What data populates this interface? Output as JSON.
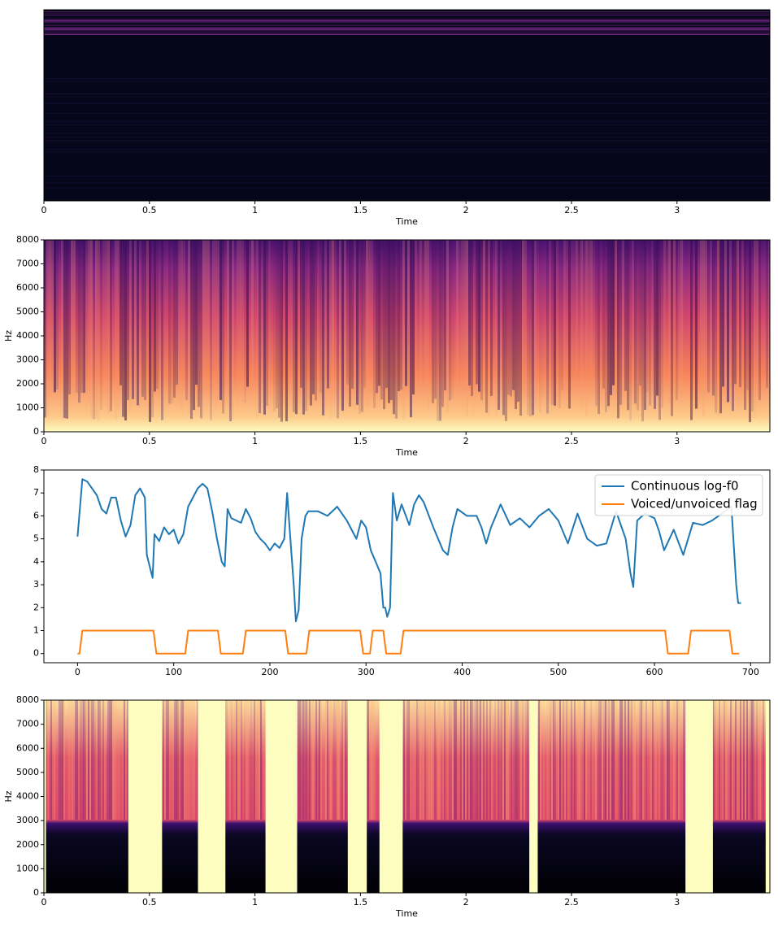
{
  "chart_data": [
    {
      "type": "heatmap",
      "xlabel": "Time",
      "xlim": [
        0,
        3.44
      ],
      "xticks": [
        0,
        0.5,
        1,
        1.5,
        2,
        2.5,
        3
      ]
    },
    {
      "type": "heatmap",
      "xlabel": "Time",
      "ylabel": "Hz",
      "xlim": [
        0,
        3.44
      ],
      "xticks": [
        0,
        0.5,
        1,
        1.5,
        2,
        2.5,
        3
      ],
      "ylim": [
        0,
        8000
      ],
      "yticks": [
        0,
        1000,
        2000,
        3000,
        4000,
        5000,
        6000,
        7000,
        8000
      ]
    },
    {
      "type": "line",
      "xlim": [
        -35,
        720
      ],
      "xticks": [
        0,
        100,
        200,
        300,
        400,
        500,
        600,
        700
      ],
      "ylim": [
        -0.4,
        8
      ],
      "yticks": [
        0,
        1,
        2,
        3,
        4,
        5,
        6,
        7,
        8
      ],
      "legend": "upper right",
      "series": [
        {
          "name": "Continuous log-f0",
          "color": "#1f77b4",
          "x": [
            0,
            5,
            10,
            20,
            25,
            30,
            35,
            40,
            45,
            50,
            55,
            60,
            65,
            70,
            72,
            78,
            80,
            85,
            90,
            95,
            100,
            105,
            110,
            115,
            120,
            125,
            130,
            135,
            140,
            145,
            150,
            153,
            156,
            160,
            170,
            175,
            180,
            185,
            190,
            195,
            200,
            205,
            210,
            215,
            218,
            222,
            225,
            227,
            230,
            233,
            237,
            240,
            250,
            260,
            270,
            280,
            290,
            295,
            300,
            305,
            310,
            315,
            318,
            320,
            322,
            325,
            328,
            332,
            337,
            345,
            350,
            355,
            360,
            370,
            380,
            385,
            390,
            395,
            405,
            415,
            420,
            425,
            430,
            440,
            450,
            460,
            470,
            480,
            490,
            500,
            510,
            520,
            530,
            540,
            550,
            560,
            570,
            575,
            578,
            582,
            590,
            600,
            605,
            610,
            620,
            630,
            640,
            650,
            660,
            670,
            680,
            682,
            685,
            687,
            690
          ],
          "values": [
            5.1,
            7.6,
            7.5,
            6.9,
            6.3,
            6.1,
            6.8,
            6.8,
            5.8,
            5.1,
            5.6,
            6.9,
            7.2,
            6.8,
            4.3,
            3.3,
            5.2,
            4.9,
            5.5,
            5.2,
            5.4,
            4.8,
            5.2,
            6.4,
            6.8,
            7.2,
            7.4,
            7.2,
            6.2,
            5.0,
            4.0,
            3.8,
            6.3,
            5.9,
            5.7,
            6.3,
            5.9,
            5.3,
            5.0,
            4.8,
            4.5,
            4.8,
            4.6,
            5.0,
            7.0,
            4.6,
            2.9,
            1.4,
            1.9,
            5.0,
            6.0,
            6.2,
            6.2,
            6.0,
            6.4,
            5.8,
            5.0,
            5.8,
            5.5,
            4.5,
            4.0,
            3.5,
            2.0,
            2.0,
            1.6,
            2.0,
            7.0,
            5.8,
            6.5,
            5.6,
            6.5,
            6.9,
            6.6,
            5.5,
            4.5,
            4.3,
            5.5,
            6.3,
            6.0,
            6.0,
            5.5,
            4.8,
            5.5,
            6.5,
            5.6,
            5.9,
            5.5,
            6.0,
            6.3,
            5.8,
            4.8,
            6.1,
            5.0,
            4.7,
            4.8,
            6.2,
            5.0,
            3.5,
            2.9,
            5.8,
            6.1,
            5.9,
            5.3,
            4.5,
            5.4,
            4.3,
            5.7,
            5.6,
            5.8,
            6.1,
            6.4,
            5.0,
            3.0,
            2.2,
            2.2
          ]
        },
        {
          "name": "Voiced/unvoiced flag",
          "color": "#ff7f0e",
          "x": [
            0,
            2,
            5,
            79,
            82,
            112,
            115,
            146,
            149,
            172,
            175,
            216,
            219,
            238,
            241,
            294,
            297,
            304,
            307,
            318,
            321,
            336,
            339,
            611,
            614,
            635,
            638,
            678,
            681,
            688
          ],
          "values": [
            0,
            0,
            1,
            1,
            0,
            0,
            1,
            1,
            0,
            0,
            1,
            1,
            0,
            0,
            1,
            1,
            0,
            0,
            1,
            1,
            0,
            0,
            1,
            1,
            0,
            0,
            1,
            1,
            0,
            0
          ]
        }
      ]
    },
    {
      "type": "heatmap",
      "xlabel": "Time",
      "ylabel": "Hz",
      "xlim": [
        0,
        3.44
      ],
      "xticks": [
        0,
        0.5,
        1,
        1.5,
        2,
        2.5,
        3
      ],
      "ylim": [
        0,
        8000
      ],
      "yticks": [
        0,
        1000,
        2000,
        3000,
        4000,
        5000,
        6000,
        7000,
        8000
      ]
    }
  ]
}
